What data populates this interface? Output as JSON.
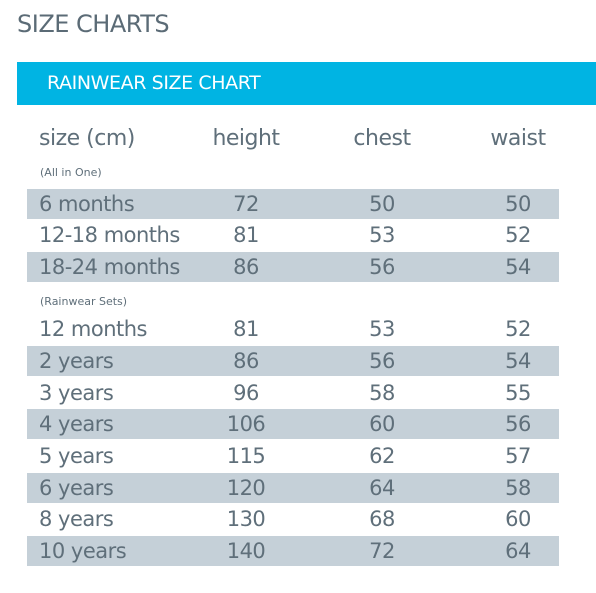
{
  "page_title": "SIZE CHARTS",
  "banner_title": "RAINWEAR SIZE CHART",
  "colors": {
    "banner": "#00b4e3",
    "row_shade": "#c5d0d8",
    "text": "#5f6f7a",
    "title": "#5b6b76"
  },
  "table": {
    "headers": [
      "size (cm)",
      "height",
      "chest",
      "waist"
    ],
    "groups": [
      {
        "label": "(All in One)",
        "rows": [
          {
            "size": "6 months",
            "height": "72",
            "chest": "50",
            "waist": "50"
          },
          {
            "size": "12-18 months",
            "height": "81",
            "chest": "53",
            "waist": "52"
          },
          {
            "size": "18-24 months",
            "height": "86",
            "chest": "56",
            "waist": "54"
          }
        ]
      },
      {
        "label": "(Rainwear Sets)",
        "rows": [
          {
            "size": "12 months",
            "height": "81",
            "chest": "53",
            "waist": "52"
          },
          {
            "size": "2 years",
            "height": "86",
            "chest": "56",
            "waist": "54"
          },
          {
            "size": "3 years",
            "height": "96",
            "chest": "58",
            "waist": "55"
          },
          {
            "size": "4 years",
            "height": "106",
            "chest": "60",
            "waist": "56"
          },
          {
            "size": "5 years",
            "height": "115",
            "chest": "62",
            "waist": "57"
          },
          {
            "size": "6 years",
            "height": "120",
            "chest": "64",
            "waist": "58"
          },
          {
            "size": "8 years",
            "height": "130",
            "chest": "68",
            "waist": "60"
          },
          {
            "size": "10 years",
            "height": "140",
            "chest": "72",
            "waist": "64"
          }
        ]
      }
    ]
  }
}
